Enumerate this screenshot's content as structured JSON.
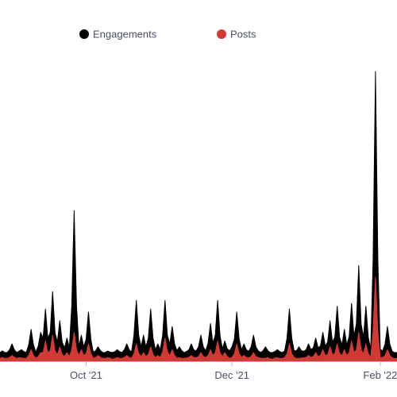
{
  "chart_data": {
    "type": "area",
    "title": "",
    "xlabel": "",
    "ylabel": "",
    "x_range": [
      "2021-08-26",
      "2022-02-08"
    ],
    "x_ticks": [
      {
        "date": "2021-10-01",
        "label": "Oct '21"
      },
      {
        "date": "2021-12-01",
        "label": "Dec '21"
      },
      {
        "date": "2022-02-01",
        "label": "Feb '22"
      }
    ],
    "y_range": [
      0,
      100
    ],
    "y_axis_visible": false,
    "grid": false,
    "stacked": false,
    "legend": {
      "position": "top-center"
    },
    "colors": {
      "engagements": "#000000",
      "posts": "#d03a32",
      "axis": "#b8bcc8",
      "text": "#4a4f63"
    },
    "series": [
      {
        "name": "Engagements",
        "color": "#000000",
        "base": 3,
        "spikes": [
          [
            "2021-08-31",
            6
          ],
          [
            "2021-09-04",
            4
          ],
          [
            "2021-09-08",
            11
          ],
          [
            "2021-09-12",
            10
          ],
          [
            "2021-09-14",
            18
          ],
          [
            "2021-09-17",
            24
          ],
          [
            "2021-09-20",
            14
          ],
          [
            "2021-09-23",
            8
          ],
          [
            "2021-09-26",
            52
          ],
          [
            "2021-09-29",
            9
          ],
          [
            "2021-10-02",
            17
          ],
          [
            "2021-10-06",
            5
          ],
          [
            "2021-10-14",
            4
          ],
          [
            "2021-10-18",
            6
          ],
          [
            "2021-10-22",
            21
          ],
          [
            "2021-10-25",
            9
          ],
          [
            "2021-10-28",
            18
          ],
          [
            "2021-10-31",
            6
          ],
          [
            "2021-11-03",
            21
          ],
          [
            "2021-11-06",
            12
          ],
          [
            "2021-11-09",
            5
          ],
          [
            "2021-11-14",
            6
          ],
          [
            "2021-11-18",
            9
          ],
          [
            "2021-11-22",
            13
          ],
          [
            "2021-11-25",
            21
          ],
          [
            "2021-11-28",
            7
          ],
          [
            "2021-12-01",
            5
          ],
          [
            "2021-12-03",
            17
          ],
          [
            "2021-12-06",
            6
          ],
          [
            "2021-12-10",
            9
          ],
          [
            "2021-12-15",
            5
          ],
          [
            "2021-12-20",
            4
          ],
          [
            "2021-12-25",
            18
          ],
          [
            "2021-12-29",
            5
          ],
          [
            "2022-01-02",
            6
          ],
          [
            "2022-01-05",
            8
          ],
          [
            "2022-01-08",
            10
          ],
          [
            "2022-01-11",
            14
          ],
          [
            "2022-01-14",
            19
          ],
          [
            "2022-01-17",
            11
          ],
          [
            "2022-01-20",
            20
          ],
          [
            "2022-01-23",
            33
          ],
          [
            "2022-01-26",
            19
          ],
          [
            "2022-01-30",
            100
          ],
          [
            "2022-02-04",
            12
          ]
        ]
      },
      {
        "name": "Posts",
        "color": "#d03a32",
        "base": 1,
        "spikes": [
          [
            "2021-08-31",
            2
          ],
          [
            "2021-09-08",
            4
          ],
          [
            "2021-09-12",
            3
          ],
          [
            "2021-09-14",
            7
          ],
          [
            "2021-09-17",
            9
          ],
          [
            "2021-09-20",
            5
          ],
          [
            "2021-09-23",
            3
          ],
          [
            "2021-09-26",
            10
          ],
          [
            "2021-09-29",
            4
          ],
          [
            "2021-10-02",
            6
          ],
          [
            "2021-10-06",
            2
          ],
          [
            "2021-10-18",
            2
          ],
          [
            "2021-10-22",
            6
          ],
          [
            "2021-10-25",
            3
          ],
          [
            "2021-10-28",
            5
          ],
          [
            "2021-10-31",
            2
          ],
          [
            "2021-11-03",
            8
          ],
          [
            "2021-11-06",
            4
          ],
          [
            "2021-11-14",
            2
          ],
          [
            "2021-11-18",
            3
          ],
          [
            "2021-11-22",
            4
          ],
          [
            "2021-11-25",
            7
          ],
          [
            "2021-11-28",
            3
          ],
          [
            "2021-12-03",
            6
          ],
          [
            "2021-12-06",
            2
          ],
          [
            "2021-12-10",
            3
          ],
          [
            "2021-12-25",
            6
          ],
          [
            "2022-01-02",
            2
          ],
          [
            "2022-01-05",
            3
          ],
          [
            "2022-01-08",
            4
          ],
          [
            "2022-01-11",
            5
          ],
          [
            "2022-01-14",
            6
          ],
          [
            "2022-01-17",
            4
          ],
          [
            "2022-01-20",
            7
          ],
          [
            "2022-01-23",
            10
          ],
          [
            "2022-01-26",
            6
          ],
          [
            "2022-01-30",
            29
          ],
          [
            "2022-02-04",
            4
          ]
        ]
      }
    ]
  }
}
